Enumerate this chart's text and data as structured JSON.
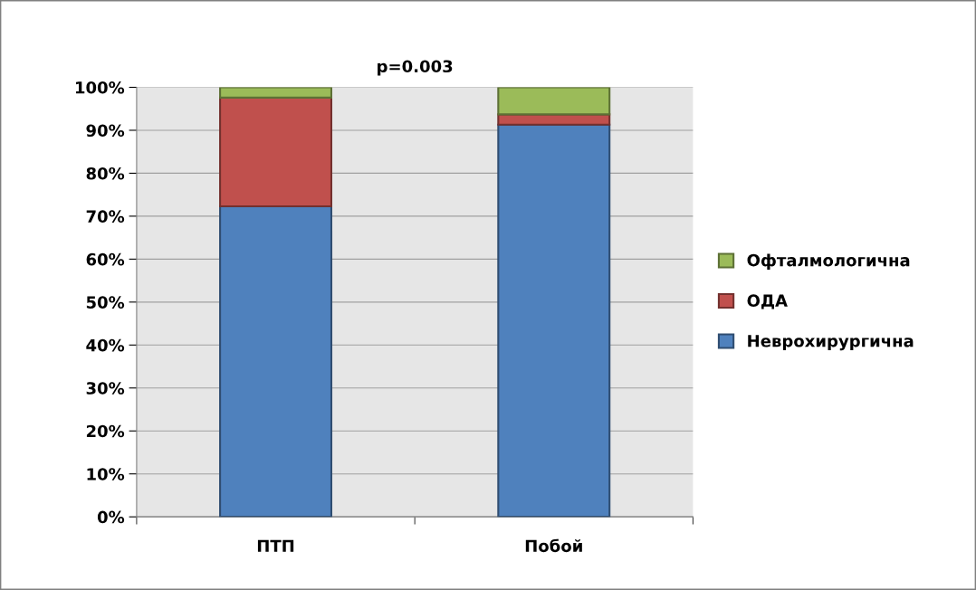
{
  "chart_data": {
    "type": "bar",
    "title": "p=0.003",
    "stacked": true,
    "categories": [
      "ПТП",
      "Побой"
    ],
    "series": [
      {
        "name": "Неврохирургична",
        "color": "#4f81bd",
        "values": [
          72.3,
          91.3
        ]
      },
      {
        "name": "ОДА",
        "color": "#c0504d",
        "values": [
          25.3,
          2.4
        ]
      },
      {
        "name": "Офталмологична",
        "color": "#9bbb59",
        "values": [
          2.4,
          6.3
        ]
      }
    ],
    "ylim": [
      0,
      100
    ],
    "yticks": [
      {
        "value": 0,
        "label": "0%"
      },
      {
        "value": 10,
        "label": "10%"
      },
      {
        "value": 20,
        "label": "20%"
      },
      {
        "value": 30,
        "label": "30%"
      },
      {
        "value": 40,
        "label": "40%"
      },
      {
        "value": 50,
        "label": "50%"
      },
      {
        "value": 60,
        "label": "60%"
      },
      {
        "value": 70,
        "label": "70%"
      },
      {
        "value": 80,
        "label": "80%"
      },
      {
        "value": 90,
        "label": "90%"
      },
      {
        "value": 100,
        "label": "100%"
      }
    ],
    "grid": "y",
    "legend": "right"
  }
}
